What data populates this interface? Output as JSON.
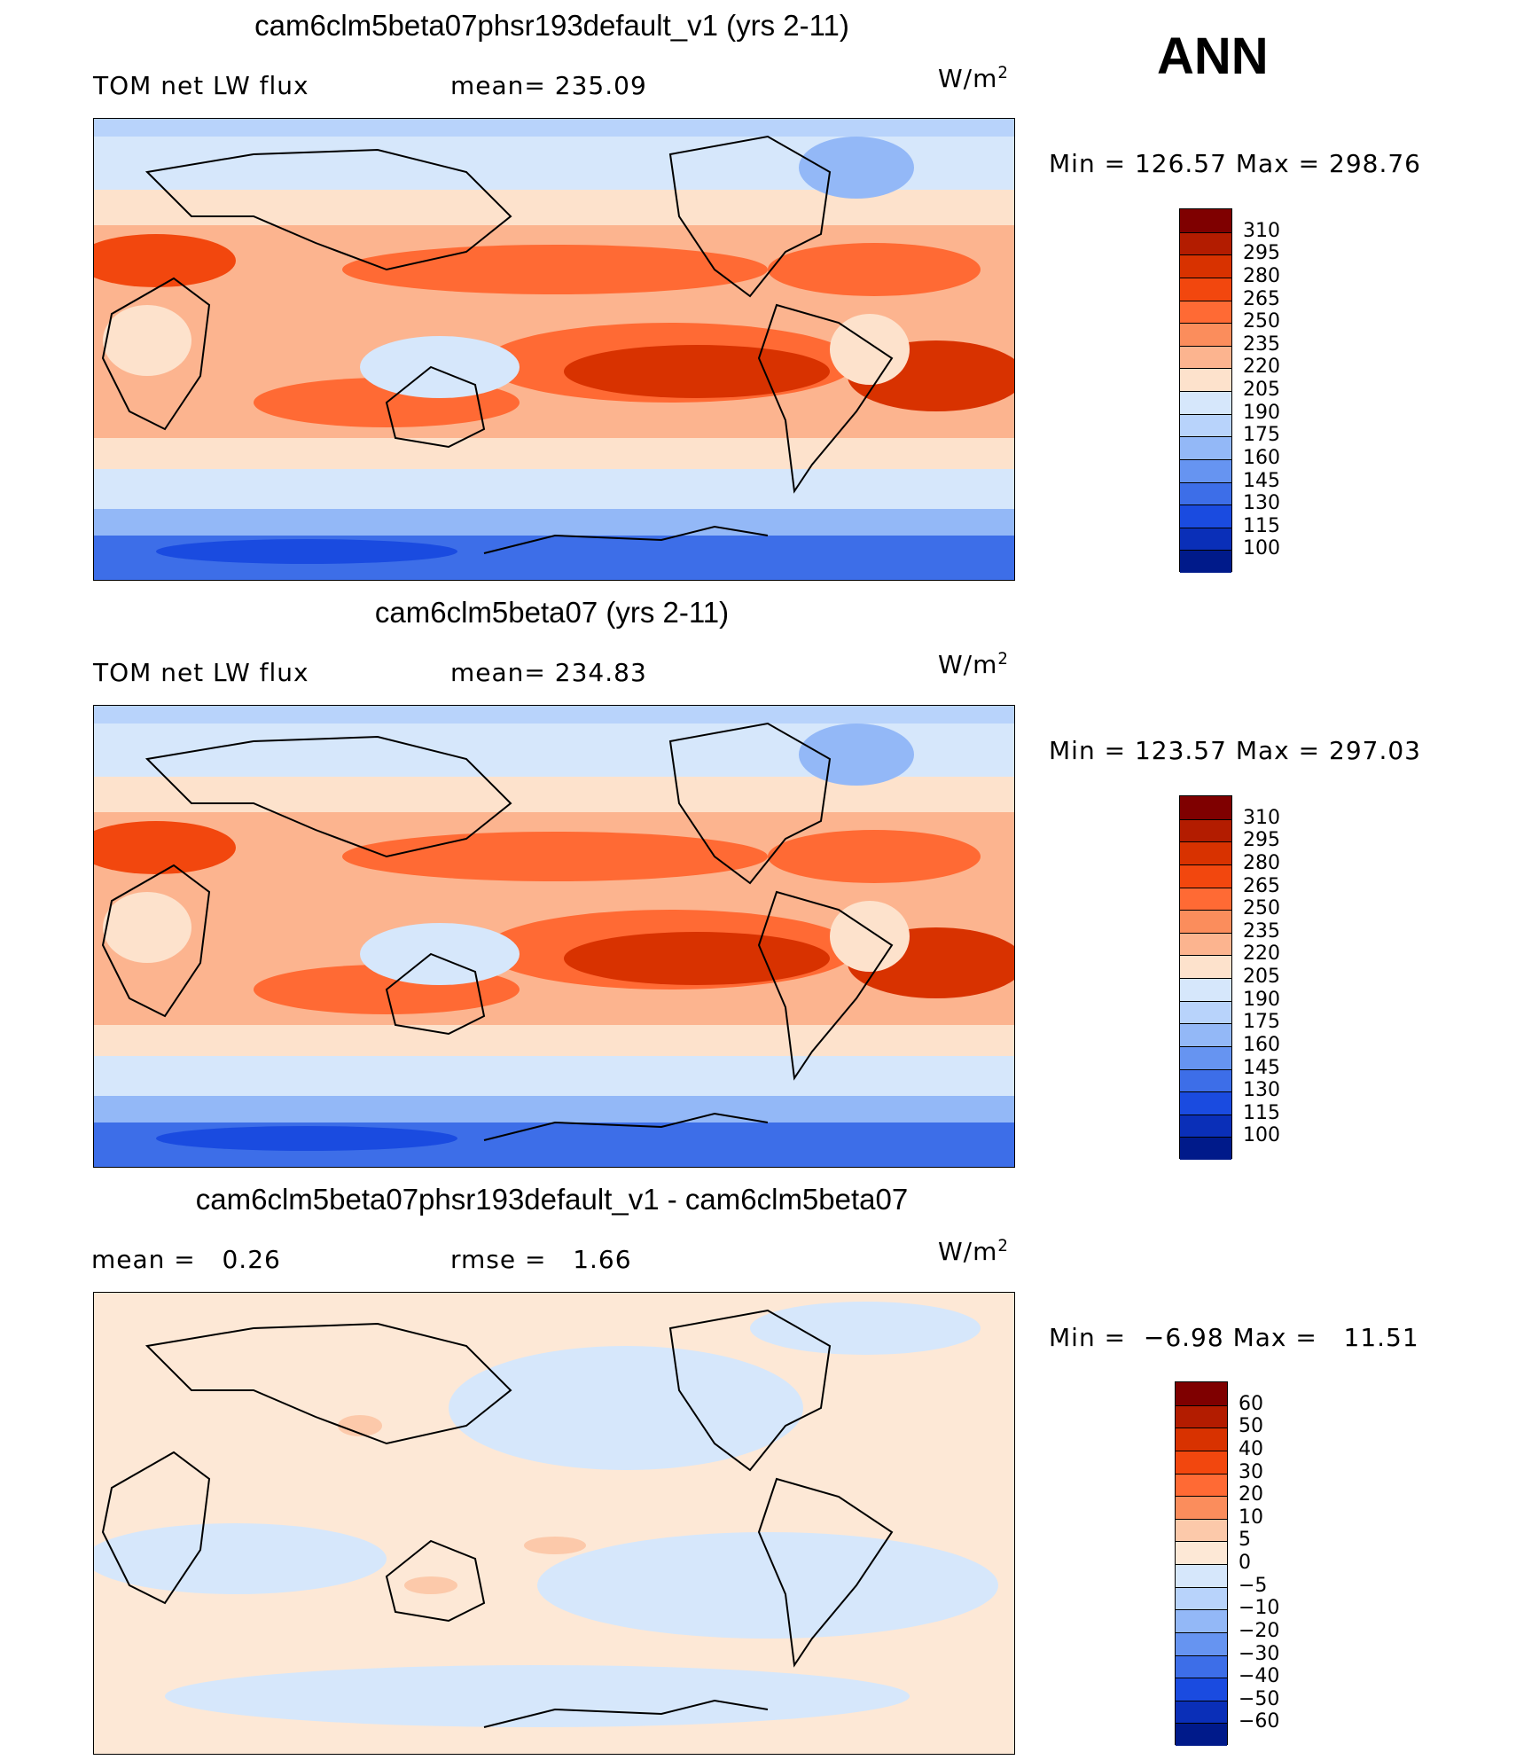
{
  "season": "ANN",
  "units_base": "W/m",
  "units_exp": "2",
  "panels": [
    {
      "title": "cam6clm5beta07phsr193default_v1 (yrs 2-11)",
      "left_label": "TOM net LW flux",
      "stat_label": "mean=",
      "stat_value": "235.09",
      "min_label": "Min  =",
      "min_value": "126.57",
      "max_label": "Max  =",
      "max_value": "298.76"
    },
    {
      "title": "cam6clm5beta07 (yrs 2-11)",
      "left_label": "TOM net LW flux",
      "stat_label": "mean=",
      "stat_value": "234.83",
      "min_label": "Min  =",
      "min_value": "123.57",
      "max_label": "Max  =",
      "max_value": "297.03"
    },
    {
      "title": "cam6clm5beta07phsr193default_v1 - cam6clm5beta07",
      "mean_label": "mean  =",
      "mean_value": "0.26",
      "rmse_label": "rmse  =",
      "rmse_value": "1.66",
      "min_label": "Min  =",
      "min_value": "−6.98",
      "max_label": "Max  =",
      "max_value": "11.51"
    }
  ],
  "colorbars": {
    "absolute": {
      "labels": [
        "310",
        "295",
        "280",
        "265",
        "250",
        "235",
        "220",
        "205",
        "190",
        "175",
        "160",
        "145",
        "130",
        "115",
        "100"
      ],
      "colors": [
        "#7f0000",
        "#b31c00",
        "#d83200",
        "#f2470e",
        "#ff6a34",
        "#fb8d5c",
        "#fcb48f",
        "#fde2cc",
        "#d6e7fb",
        "#b8d3fb",
        "#93b8f7",
        "#6694f1",
        "#3d6ee8",
        "#1a4be0",
        "#0a2fb8",
        "#001a8a"
      ]
    },
    "difference": {
      "labels": [
        "60",
        "50",
        "40",
        "30",
        "20",
        "10",
        "5",
        "0",
        "−5",
        "−10",
        "−20",
        "−30",
        "−40",
        "−50",
        "−60"
      ],
      "colors": [
        "#7f0000",
        "#b31c00",
        "#d83200",
        "#f2470e",
        "#ff6a34",
        "#fb8d5c",
        "#fcc9aa",
        "#fde8d6",
        "#d6e7fb",
        "#b8d3fb",
        "#93b8f7",
        "#6694f1",
        "#3d6ee8",
        "#1a4be0",
        "#0a2fb8",
        "#001a8a"
      ]
    }
  },
  "chart_data": [
    {
      "type": "heatmap",
      "title": "cam6clm5beta07phsr193default_v1 (yrs 2-11)",
      "variable": "TOM net LW flux",
      "units": "W/m2",
      "mean": 235.09,
      "min": 126.57,
      "max": 298.76,
      "contour_levels": [
        100,
        115,
        130,
        145,
        160,
        175,
        190,
        205,
        220,
        235,
        250,
        265,
        280,
        295,
        310
      ]
    },
    {
      "type": "heatmap",
      "title": "cam6clm5beta07 (yrs 2-11)",
      "variable": "TOM net LW flux",
      "units": "W/m2",
      "mean": 234.83,
      "min": 123.57,
      "max": 297.03,
      "contour_levels": [
        100,
        115,
        130,
        145,
        160,
        175,
        190,
        205,
        220,
        235,
        250,
        265,
        280,
        295,
        310
      ]
    },
    {
      "type": "heatmap",
      "title": "cam6clm5beta07phsr193default_v1 - cam6clm5beta07",
      "units": "W/m2",
      "mean": 0.26,
      "rmse": 1.66,
      "min": -6.98,
      "max": 11.51,
      "contour_levels": [
        -60,
        -50,
        -40,
        -30,
        -20,
        -10,
        -5,
        0,
        5,
        10,
        20,
        30,
        40,
        50,
        60
      ]
    }
  ]
}
